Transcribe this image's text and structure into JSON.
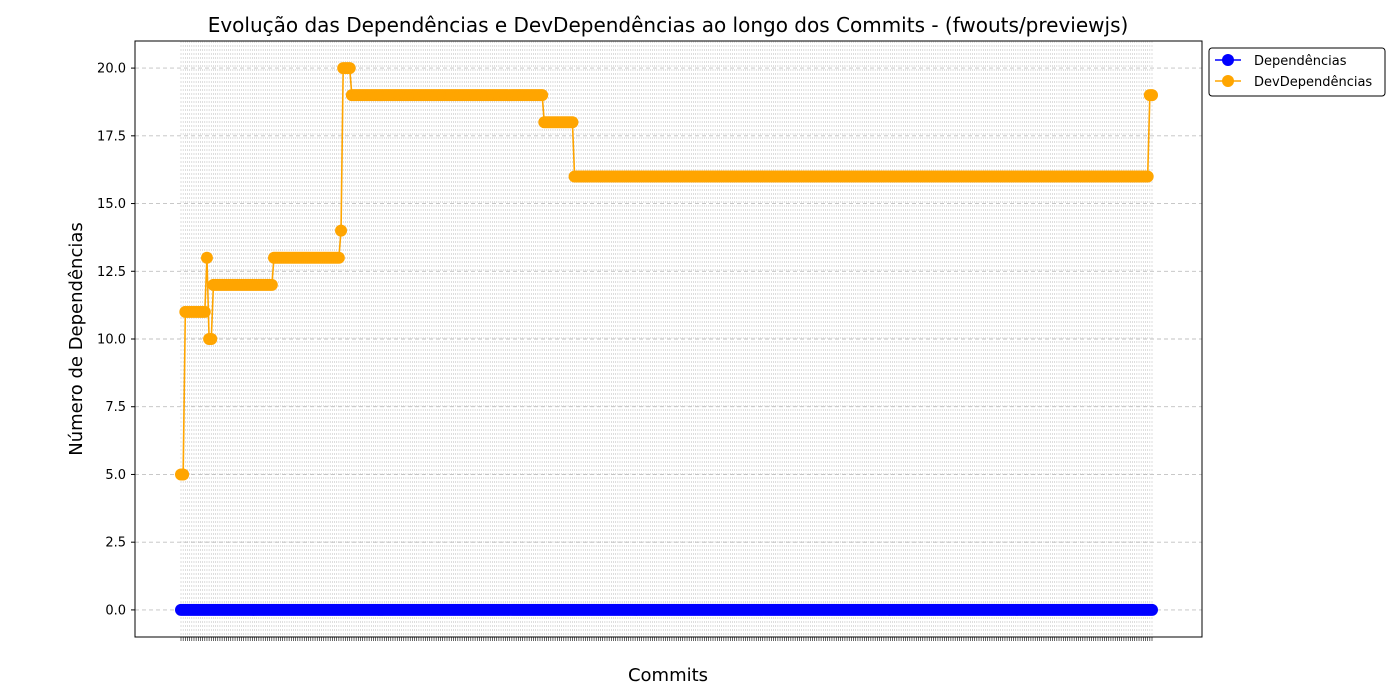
{
  "chart_data": {
    "type": "line",
    "title": "Evolução das Dependências e DevDependências ao longo dos Commits - (fwouts/previewjs)",
    "xlabel": "Commits",
    "ylabel": "Número de Dependências",
    "ylim": [
      -1,
      21
    ],
    "yticks": [
      "0.0",
      "2.5",
      "5.0",
      "7.5",
      "10.0",
      "12.5",
      "15.0",
      "17.5",
      "20.0"
    ],
    "ytick_values": [
      0,
      2.5,
      5,
      7.5,
      10,
      12.5,
      15,
      17.5,
      20
    ],
    "commit_count": 450,
    "grid": "dashed horizontal, dotted vertical per commit",
    "legend_position": "outside top-right",
    "series": [
      {
        "name": "Dependências",
        "color": "#0000ff",
        "segments": [
          {
            "from": 0,
            "to": 449,
            "value": 0
          }
        ]
      },
      {
        "name": "DevDependências",
        "color": "#ffa500",
        "segments": [
          {
            "from": 0,
            "to": 1,
            "value": 5
          },
          {
            "from": 2,
            "to": 11,
            "value": 11
          },
          {
            "from": 12,
            "to": 12,
            "value": 13
          },
          {
            "from": 13,
            "to": 14,
            "value": 10
          },
          {
            "from": 15,
            "to": 42,
            "value": 12
          },
          {
            "from": 43,
            "to": 73,
            "value": 13
          },
          {
            "from": 74,
            "to": 74,
            "value": 14
          },
          {
            "from": 75,
            "to": 78,
            "value": 20
          },
          {
            "from": 79,
            "to": 167,
            "value": 19
          },
          {
            "from": 168,
            "to": 181,
            "value": 18
          },
          {
            "from": 182,
            "to": 447,
            "value": 16
          },
          {
            "from": 448,
            "to": 449,
            "value": 19
          }
        ]
      }
    ]
  }
}
